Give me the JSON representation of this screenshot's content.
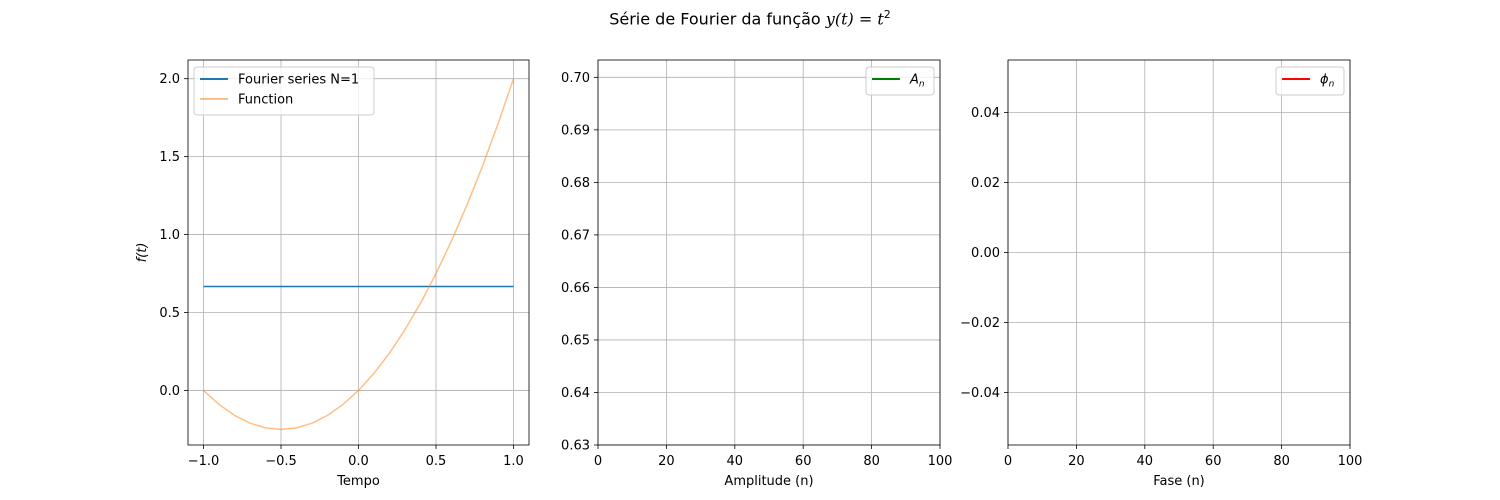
{
  "figure": {
    "suptitle_text": "Série de Fourier da função ",
    "suptitle_math": "y(t) = t",
    "suptitle_sup": "2"
  },
  "chart_data": [
    {
      "type": "line",
      "xlabel": "Tempo",
      "ylabel": "f(t)",
      "xlim": [
        -1.1,
        1.1
      ],
      "ylim": [
        -0.35,
        2.12
      ],
      "xticks": [
        -1.0,
        -0.5,
        0.0,
        0.5,
        1.0
      ],
      "xtick_labels": [
        "−1.0",
        "−0.5",
        "0.0",
        "0.5",
        "1.0"
      ],
      "yticks": [
        0.0,
        0.5,
        1.0,
        1.5,
        2.0
      ],
      "ytick_labels": [
        "0.0",
        "0.5",
        "1.0",
        "1.5",
        "2.0"
      ],
      "grid": true,
      "legend": "upper-left",
      "series": [
        {
          "name": "Fourier series N=1",
          "color": "#1f77b4",
          "opacity": 1.0,
          "x": [
            -1.0,
            1.0
          ],
          "y": [
            0.6667,
            0.6667
          ]
        },
        {
          "name": "Function",
          "color": "#ff7f0e",
          "opacity": 0.5,
          "x": [
            -1.0,
            -0.9,
            -0.8,
            -0.7,
            -0.6,
            -0.5,
            -0.4,
            -0.3,
            -0.2,
            -0.1,
            0.0,
            0.1,
            0.2,
            0.3,
            0.4,
            0.5,
            0.6,
            0.7,
            0.8,
            0.9,
            1.0
          ],
          "y": [
            0.0,
            -0.09,
            -0.16,
            -0.21,
            -0.24,
            -0.25,
            -0.24,
            -0.21,
            -0.16,
            -0.09,
            0.0,
            0.11,
            0.24,
            0.39,
            0.56,
            0.75,
            0.96,
            1.19,
            1.44,
            1.71,
            2.0
          ]
        }
      ]
    },
    {
      "type": "line",
      "xlabel": "Amplitude (n)",
      "ylabel": "",
      "xlim": [
        0,
        100
      ],
      "ylim": [
        0.63,
        0.7033
      ],
      "xticks": [
        0,
        20,
        40,
        60,
        80,
        100
      ],
      "xtick_labels": [
        "0",
        "20",
        "40",
        "60",
        "80",
        "100"
      ],
      "yticks": [
        0.63,
        0.64,
        0.65,
        0.66,
        0.67,
        0.68,
        0.69,
        0.7
      ],
      "ytick_labels": [
        "0.63",
        "0.64",
        "0.65",
        "0.66",
        "0.67",
        "0.68",
        "0.69",
        "0.70"
      ],
      "grid": true,
      "legend": "upper-right",
      "series": [
        {
          "name": "A",
          "name_sub": "n",
          "color": "#008000",
          "opacity": 1.0,
          "x": [],
          "y": []
        }
      ]
    },
    {
      "type": "line",
      "xlabel": "Fase (n)",
      "ylabel": "",
      "xlim": [
        0,
        100
      ],
      "ylim": [
        -0.055,
        0.055
      ],
      "xticks": [
        0,
        20,
        40,
        60,
        80,
        100
      ],
      "xtick_labels": [
        "0",
        "20",
        "40",
        "60",
        "80",
        "100"
      ],
      "yticks": [
        -0.04,
        -0.02,
        0.0,
        0.02,
        0.04
      ],
      "ytick_labels": [
        "−0.04",
        "−0.02",
        "0.00",
        "0.02",
        "0.04"
      ],
      "grid": true,
      "legend": "upper-right",
      "series": [
        {
          "name": "ϕ",
          "name_sub": "n",
          "color": "#ff0000",
          "opacity": 1.0,
          "x": [],
          "y": []
        }
      ]
    }
  ]
}
